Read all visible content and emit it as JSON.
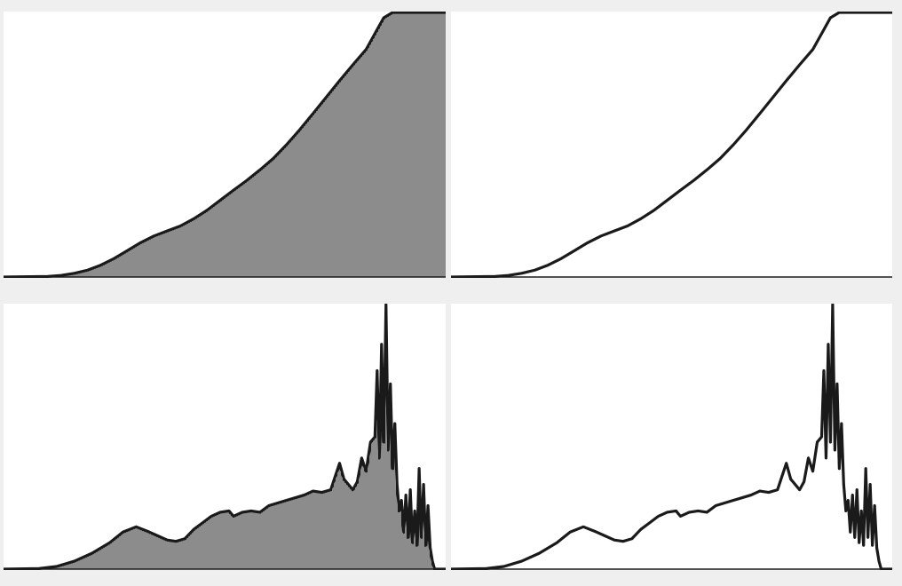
{
  "colors": {
    "background": "#efefef",
    "panel": "#ffffff",
    "ink": "#1a1a1a"
  },
  "chart_data": [
    {
      "type": "area",
      "title": "",
      "xlabel": "",
      "ylabel": "",
      "style": "spikes",
      "grid": false,
      "legend": "none",
      "xlim": [
        0,
        100
      ],
      "ylim": [
        0,
        1
      ],
      "series": [
        {
          "x": [
            0,
            10,
            13,
            16,
            19,
            22,
            25,
            28,
            31,
            34,
            37,
            40,
            43,
            46,
            49,
            52,
            55,
            58,
            61,
            64,
            67,
            70,
            73,
            76,
            79,
            82,
            84,
            86,
            88,
            90,
            92,
            94,
            96,
            100
          ],
          "values": [
            0,
            0.002,
            0.006,
            0.014,
            0.026,
            0.045,
            0.07,
            0.1,
            0.13,
            0.155,
            0.174,
            0.193,
            0.22,
            0.252,
            0.29,
            0.328,
            0.365,
            0.405,
            0.448,
            0.5,
            0.557,
            0.618,
            0.68,
            0.742,
            0.802,
            0.86,
            0.92,
            0.98,
            1.0,
            1.0,
            1.0,
            1.0,
            1.0,
            1.0
          ]
        }
      ]
    },
    {
      "type": "line",
      "title": "",
      "xlabel": "",
      "ylabel": "",
      "style": "line",
      "grid": false,
      "legend": "none",
      "xlim": [
        0,
        100
      ],
      "ylim": [
        0,
        1
      ],
      "series": [
        {
          "x": [
            0,
            10,
            13,
            16,
            19,
            22,
            25,
            28,
            31,
            34,
            37,
            40,
            43,
            46,
            49,
            52,
            55,
            58,
            61,
            64,
            67,
            70,
            73,
            76,
            79,
            82,
            84,
            86,
            88,
            90,
            92,
            94,
            96,
            100
          ],
          "values": [
            0,
            0.002,
            0.006,
            0.014,
            0.026,
            0.045,
            0.07,
            0.1,
            0.13,
            0.155,
            0.174,
            0.193,
            0.22,
            0.252,
            0.29,
            0.328,
            0.365,
            0.405,
            0.448,
            0.5,
            0.557,
            0.618,
            0.68,
            0.742,
            0.802,
            0.86,
            0.92,
            0.98,
            1.0,
            1.0,
            1.0,
            1.0,
            1.0,
            1.0
          ]
        }
      ]
    },
    {
      "type": "area",
      "title": "",
      "xlabel": "",
      "ylabel": "",
      "style": "spikes",
      "grid": false,
      "legend": "none",
      "xlim": [
        0,
        100
      ],
      "ylim": [
        0,
        1
      ],
      "series": [
        {
          "x": [
            0,
            8,
            12,
            16,
            20,
            24,
            27,
            30,
            33,
            35,
            37,
            39,
            41,
            43,
            45,
            47,
            49,
            51,
            52,
            54,
            56,
            58,
            60,
            62,
            64,
            66,
            68,
            70,
            72,
            74,
            76,
            77,
            78,
            79,
            80,
            81,
            82,
            83,
            84,
            84.5,
            85,
            85.5,
            86,
            86.5,
            87,
            87.5,
            88,
            88.5,
            89,
            89.5,
            90,
            90.5,
            91,
            91.5,
            92,
            92.5,
            93,
            93.5,
            94,
            94.5,
            95,
            95.5,
            96,
            96.5,
            97,
            97.5,
            98,
            100
          ],
          "values": [
            0,
            0.002,
            0.01,
            0.03,
            0.06,
            0.1,
            0.14,
            0.16,
            0.14,
            0.125,
            0.11,
            0.105,
            0.115,
            0.15,
            0.175,
            0.2,
            0.215,
            0.22,
            0.2,
            0.215,
            0.22,
            0.215,
            0.24,
            0.25,
            0.26,
            0.27,
            0.28,
            0.295,
            0.29,
            0.3,
            0.4,
            0.34,
            0.32,
            0.3,
            0.33,
            0.42,
            0.37,
            0.48,
            0.5,
            0.75,
            0.42,
            0.85,
            0.48,
            1.0,
            0.45,
            0.7,
            0.38,
            0.55,
            0.32,
            0.22,
            0.26,
            0.14,
            0.28,
            0.12,
            0.3,
            0.1,
            0.22,
            0.09,
            0.38,
            0.12,
            0.32,
            0.09,
            0.24,
            0.08,
            0.03,
            0,
            0,
            0
          ]
        }
      ]
    },
    {
      "type": "line",
      "title": "",
      "xlabel": "",
      "ylabel": "",
      "style": "line",
      "grid": false,
      "legend": "none",
      "xlim": [
        0,
        100
      ],
      "ylim": [
        0,
        1
      ],
      "series": [
        {
          "x": [
            0,
            8,
            12,
            16,
            20,
            24,
            27,
            30,
            33,
            35,
            37,
            39,
            41,
            43,
            45,
            47,
            49,
            51,
            52,
            54,
            56,
            58,
            60,
            62,
            64,
            66,
            68,
            70,
            72,
            74,
            76,
            77,
            78,
            79,
            80,
            81,
            82,
            83,
            84,
            84.5,
            85,
            85.5,
            86,
            86.5,
            87,
            87.5,
            88,
            88.5,
            89,
            89.5,
            90,
            90.5,
            91,
            91.5,
            92,
            92.5,
            93,
            93.5,
            94,
            94.5,
            95,
            95.5,
            96,
            96.5,
            97,
            97.5,
            98,
            100
          ],
          "values": [
            0,
            0.002,
            0.01,
            0.03,
            0.06,
            0.1,
            0.14,
            0.16,
            0.14,
            0.125,
            0.11,
            0.105,
            0.115,
            0.15,
            0.175,
            0.2,
            0.215,
            0.22,
            0.2,
            0.215,
            0.22,
            0.215,
            0.24,
            0.25,
            0.26,
            0.27,
            0.28,
            0.295,
            0.29,
            0.3,
            0.4,
            0.34,
            0.32,
            0.3,
            0.33,
            0.42,
            0.37,
            0.48,
            0.5,
            0.75,
            0.42,
            0.85,
            0.48,
            1.0,
            0.45,
            0.7,
            0.38,
            0.55,
            0.32,
            0.22,
            0.26,
            0.14,
            0.28,
            0.12,
            0.3,
            0.1,
            0.22,
            0.09,
            0.38,
            0.12,
            0.32,
            0.09,
            0.24,
            0.08,
            0.03,
            0,
            0,
            0
          ]
        }
      ]
    }
  ]
}
